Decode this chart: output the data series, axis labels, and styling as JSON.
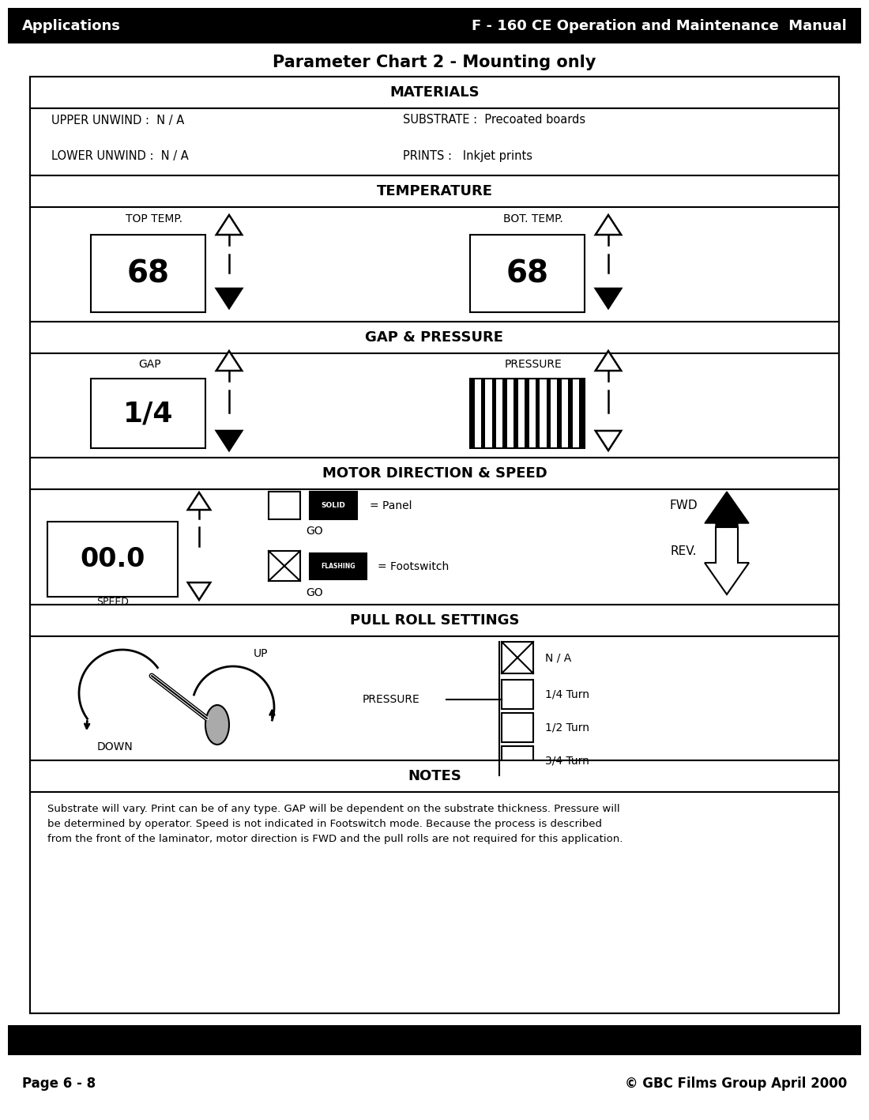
{
  "page_title_left": "Applications",
  "page_title_right": "F - 160 CE Operation and Maintenance  Manual",
  "chart_title": "Parameter Chart 2 - Mounting only",
  "materials_header": "MATERIALS",
  "upper_unwind": "UPPER UNWIND :  N / A",
  "lower_unwind": "LOWER UNWIND :  N / A",
  "substrate": "SUBSTRATE :  Precoated boards",
  "prints": "PRINTS :   Inkjet prints",
  "temperature_header": "TEMPERATURE",
  "top_temp_label": "TOP TEMP.",
  "top_temp_value": "68",
  "bot_temp_label": "BOT. TEMP.",
  "bot_temp_value": "68",
  "gap_pressure_header": "GAP & PRESSURE",
  "gap_label": "GAP",
  "gap_value": "1/4",
  "pressure_label": "PRESSURE",
  "motor_header": "MOTOR DIRECTION & SPEED",
  "speed_value": "00.0",
  "speed_label": "SPEED",
  "solid_label": "SOLID",
  "panel_label": "= Panel",
  "go_label": "GO",
  "flashing_label": "FLASHING",
  "footswitch_label": "= Footswitch",
  "fwd_label": "FWD",
  "rev_label": "REV.",
  "pull_roll_header": "PULL ROLL SETTINGS",
  "down_label": "DOWN",
  "up_label": "UP",
  "pressure_label2": "PRESSURE",
  "na_label": "N / A",
  "quarter_turn": "1/4 Turn",
  "half_turn": "1/2 Turn",
  "three_quarter_turn": "3/4 Turn",
  "notes_header": "NOTES",
  "notes_text": "Substrate will vary. Print can be of any type. GAP will be dependent on the substrate thickness. Pressure will\nbe determined by operator. Speed is not indicated in Footswitch mode. Because the process is described\nfrom the front of the laminator, motor direction is FWD and the pull rolls are not required for this application.",
  "footer_left": "Page 6 - 8",
  "footer_right": "© GBC Films Group April 2000",
  "bg_color": "#ffffff",
  "text_color": "#000000",
  "header_bar_color": "#000000"
}
